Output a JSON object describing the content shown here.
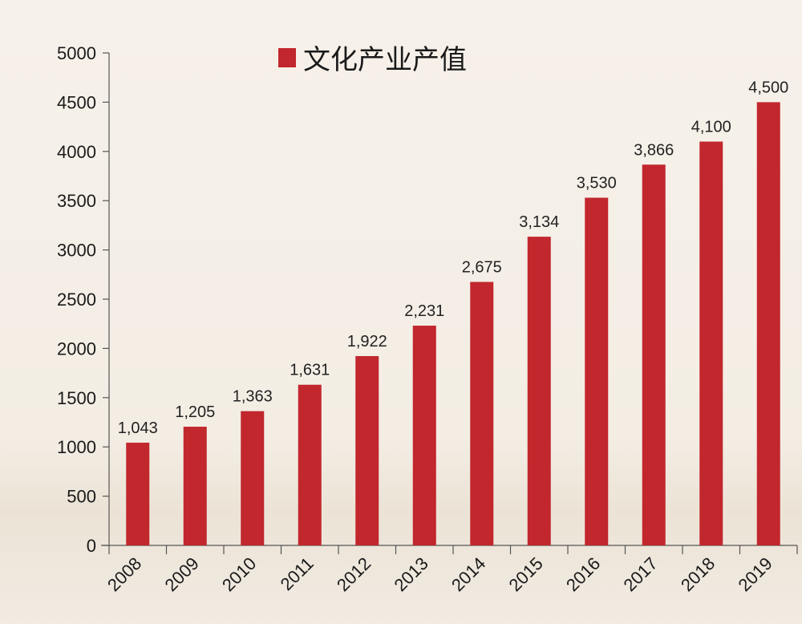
{
  "chart_data": {
    "type": "bar",
    "title": "",
    "xlabel": "",
    "ylabel": "",
    "legend": {
      "position": "top-center",
      "entries": [
        "文化产业产值"
      ]
    },
    "categories": [
      "2008",
      "2009",
      "2010",
      "2011",
      "2012",
      "2013",
      "2014",
      "2015",
      "2016",
      "2017",
      "2018",
      "2019"
    ],
    "series": [
      {
        "name": "文化产业产值",
        "color": "#c1272d",
        "values": [
          1043,
          1205,
          1363,
          1631,
          1922,
          2231,
          2675,
          3134,
          3530,
          3866,
          4100,
          4500
        ],
        "labels": [
          "1,043",
          "1,205",
          "1,363",
          "1,631",
          "1,922",
          "2,231",
          "2,675",
          "3,134",
          "3,530",
          "3,866",
          "4,100",
          "4,500"
        ]
      }
    ],
    "ylim": [
      0,
      5000
    ],
    "yticks": [
      "0",
      "500",
      "1000",
      "1500",
      "2000",
      "2500",
      "3000",
      "3500",
      "4000",
      "4500",
      "5000"
    ],
    "grid": false
  }
}
